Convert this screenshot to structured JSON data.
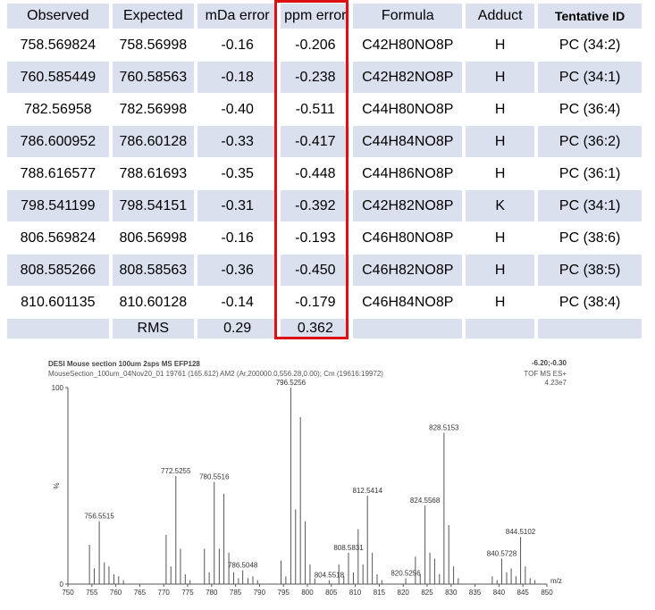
{
  "table": {
    "headers": [
      "Observed",
      "Expected",
      "mDa error",
      "ppm error",
      "Formula",
      "Adduct",
      "Tentative ID"
    ],
    "rows": [
      [
        "758.569824",
        "758.56998",
        "-0.16",
        "-0.206",
        "C42H80NO8P",
        "H",
        "PC (34:2)"
      ],
      [
        "760.585449",
        "760.58563",
        "-0.18",
        "-0.238",
        "C42H82NO8P",
        "H",
        "PC (34:1)"
      ],
      [
        "782.56958",
        "782.56998",
        "-0.40",
        "-0.511",
        "C44H80NO8P",
        "H",
        "PC (36:4)"
      ],
      [
        "786.600952",
        "786.60128",
        "-0.33",
        "-0.417",
        "C44H84NO8P",
        "H",
        "PC (36:2)"
      ],
      [
        "788.616577",
        "788.61693",
        "-0.35",
        "-0.448",
        "C44H86NO8P",
        "H",
        "PC (36:1)"
      ],
      [
        "798.541199",
        "798.54151",
        "-0.31",
        "-0.392",
        "C42H82NO8P",
        "K",
        "PC (34:1)"
      ],
      [
        "806.569824",
        "806.56998",
        "-0.16",
        "-0.193",
        "C46H80NO8P",
        "H",
        "PC (38:6)"
      ],
      [
        "808.585266",
        "808.58563",
        "-0.36",
        "-0.450",
        "C46H82NO8P",
        "H",
        "PC (38:5)"
      ],
      [
        "810.601135",
        "810.60128",
        "-0.14",
        "-0.179",
        "C46H84NO8P",
        "H",
        "PC (38:4)"
      ]
    ],
    "rms": {
      "label": "RMS",
      "mda": "0.29",
      "ppm": "0.362"
    },
    "highlight_color": "#dd1111"
  },
  "spectrum_header": {
    "title": "DESI Mouse section 100um 2sps MS EFP128",
    "subtitle": "MouseSection_100um_04Nov20_01 19761 (165.612) AM2 (Ar,200000.0,556.28,0.00); Cm (19616:19972)",
    "range": "-6.20;-0.30",
    "mode": "TOF MS ES+",
    "intensity": "4.23e7"
  },
  "chart_data": {
    "type": "bar",
    "title": "DESI Mouse section 100um 2sps MS EFP128",
    "xlabel": "m/z",
    "ylabel": "%",
    "xlim": [
      750,
      850
    ],
    "ylim": [
      0,
      100
    ],
    "y_ticks": [
      "0",
      "100"
    ],
    "x_ticks": [
      750,
      755,
      760,
      765,
      770,
      775,
      780,
      785,
      790,
      795,
      800,
      805,
      810,
      815,
      820,
      825,
      830,
      835,
      840,
      845,
      850
    ],
    "labels": [
      {
        "mz": 756.5515,
        "text": "756.5515"
      },
      {
        "mz": 772.5255,
        "text": "772.5255"
      },
      {
        "mz": 780.5516,
        "text": "780.5516"
      },
      {
        "mz": 786.5048,
        "text": "786.5048"
      },
      {
        "mz": 796.5256,
        "text": "796.5256"
      },
      {
        "mz": 804.5518,
        "text": "804.5518"
      },
      {
        "mz": 808.5831,
        "text": "808.5831"
      },
      {
        "mz": 812.5414,
        "text": "812.5414"
      },
      {
        "mz": 820.5256,
        "text": "820.5256"
      },
      {
        "mz": 824.5568,
        "text": "824.5568"
      },
      {
        "mz": 828.5153,
        "text": "828.5153"
      },
      {
        "mz": 840.5728,
        "text": "840.5728"
      },
      {
        "mz": 844.5102,
        "text": "844.5102"
      }
    ],
    "peaks": [
      {
        "mz": 754.5,
        "i": 20
      },
      {
        "mz": 755.5,
        "i": 8
      },
      {
        "mz": 756.55,
        "i": 32
      },
      {
        "mz": 757.6,
        "i": 11
      },
      {
        "mz": 758.57,
        "i": 9
      },
      {
        "mz": 759.6,
        "i": 5
      },
      {
        "mz": 760.59,
        "i": 4
      },
      {
        "mz": 761.6,
        "i": 2
      },
      {
        "mz": 770.5,
        "i": 25
      },
      {
        "mz": 771.5,
        "i": 9
      },
      {
        "mz": 772.53,
        "i": 55
      },
      {
        "mz": 773.5,
        "i": 18
      },
      {
        "mz": 774.5,
        "i": 5
      },
      {
        "mz": 775.5,
        "i": 2
      },
      {
        "mz": 778.5,
        "i": 18
      },
      {
        "mz": 779.5,
        "i": 6
      },
      {
        "mz": 780.55,
        "i": 52
      },
      {
        "mz": 781.6,
        "i": 18
      },
      {
        "mz": 782.57,
        "i": 46
      },
      {
        "mz": 783.6,
        "i": 16
      },
      {
        "mz": 784.6,
        "i": 6
      },
      {
        "mz": 785.6,
        "i": 3
      },
      {
        "mz": 786.5,
        "i": 7
      },
      {
        "mz": 787.6,
        "i": 3
      },
      {
        "mz": 788.62,
        "i": 4
      },
      {
        "mz": 789.6,
        "i": 2
      },
      {
        "mz": 794.5,
        "i": 12
      },
      {
        "mz": 795.5,
        "i": 4
      },
      {
        "mz": 796.53,
        "i": 100
      },
      {
        "mz": 797.53,
        "i": 38
      },
      {
        "mz": 798.54,
        "i": 85
      },
      {
        "mz": 799.55,
        "i": 32
      },
      {
        "mz": 800.55,
        "i": 10
      },
      {
        "mz": 801.55,
        "i": 3
      },
      {
        "mz": 804.55,
        "i": 2
      },
      {
        "mz": 806.57,
        "i": 10
      },
      {
        "mz": 807.6,
        "i": 4
      },
      {
        "mz": 808.58,
        "i": 16
      },
      {
        "mz": 809.6,
        "i": 6
      },
      {
        "mz": 810.6,
        "i": 28
      },
      {
        "mz": 811.6,
        "i": 10
      },
      {
        "mz": 812.54,
        "i": 45
      },
      {
        "mz": 813.55,
        "i": 16
      },
      {
        "mz": 814.55,
        "i": 5
      },
      {
        "mz": 815.55,
        "i": 2
      },
      {
        "mz": 820.53,
        "i": 3
      },
      {
        "mz": 822.55,
        "i": 14
      },
      {
        "mz": 823.55,
        "i": 5
      },
      {
        "mz": 824.56,
        "i": 40
      },
      {
        "mz": 825.57,
        "i": 16
      },
      {
        "mz": 826.57,
        "i": 13
      },
      {
        "mz": 827.57,
        "i": 5
      },
      {
        "mz": 828.52,
        "i": 77
      },
      {
        "mz": 829.52,
        "i": 30
      },
      {
        "mz": 830.52,
        "i": 9
      },
      {
        "mz": 831.5,
        "i": 3
      },
      {
        "mz": 838.6,
        "i": 4
      },
      {
        "mz": 839.6,
        "i": 2
      },
      {
        "mz": 840.57,
        "i": 13
      },
      {
        "mz": 841.6,
        "i": 6
      },
      {
        "mz": 842.55,
        "i": 8
      },
      {
        "mz": 843.55,
        "i": 4
      },
      {
        "mz": 844.51,
        "i": 24
      },
      {
        "mz": 845.5,
        "i": 9
      },
      {
        "mz": 846.5,
        "i": 3
      },
      {
        "mz": 847.5,
        "i": 2
      }
    ]
  }
}
